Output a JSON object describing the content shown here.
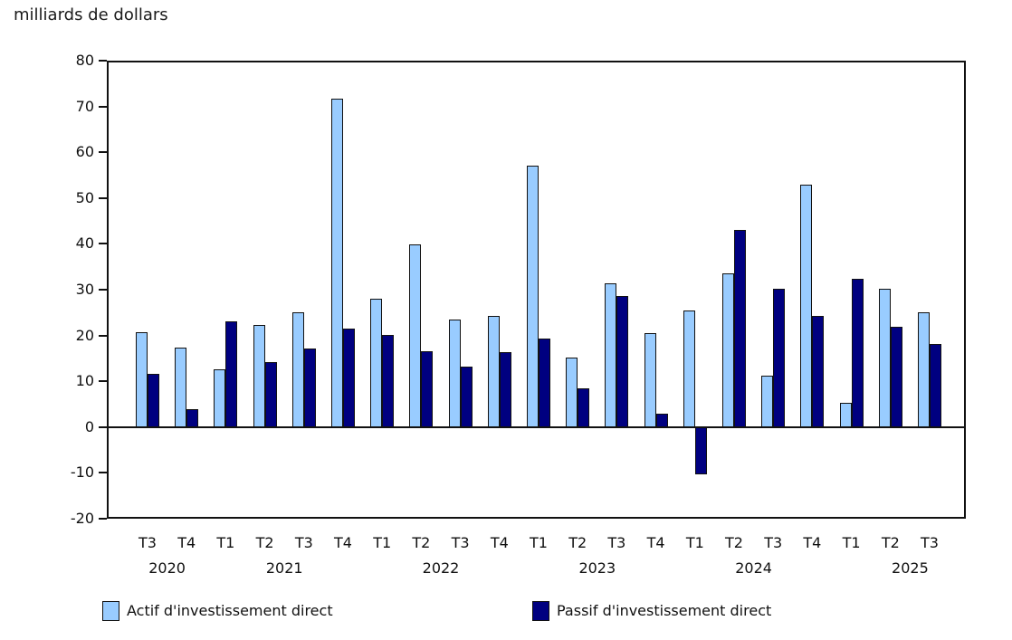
{
  "chart_data": {
    "type": "bar",
    "title": "milliards de dollars",
    "ylim": [
      -20,
      80
    ],
    "ytick_step": 10,
    "ytick_labels": [
      "80",
      "70",
      "60",
      "50",
      "40",
      "30",
      "20",
      "10",
      "0",
      "-10",
      "-20"
    ],
    "grid": false,
    "legend_position": "bottom",
    "categories": [
      {
        "q": "T3",
        "year": "2020"
      },
      {
        "q": "T4",
        "year": "2020"
      },
      {
        "q": "T1",
        "year": "2021"
      },
      {
        "q": "T2",
        "year": "2021"
      },
      {
        "q": "T3",
        "year": "2021"
      },
      {
        "q": "T4",
        "year": "2021"
      },
      {
        "q": "T1",
        "year": "2022"
      },
      {
        "q": "T2",
        "year": "2022"
      },
      {
        "q": "T3",
        "year": "2022"
      },
      {
        "q": "T4",
        "year": "2022"
      },
      {
        "q": "T1",
        "year": "2023"
      },
      {
        "q": "T2",
        "year": "2023"
      },
      {
        "q": "T3",
        "year": "2023"
      },
      {
        "q": "T4",
        "year": "2023"
      },
      {
        "q": "T1",
        "year": "2024"
      },
      {
        "q": "T2",
        "year": "2024"
      },
      {
        "q": "T3",
        "year": "2024"
      },
      {
        "q": "T4",
        "year": "2024"
      },
      {
        "q": "T1",
        "year": "2025"
      },
      {
        "q": "T2",
        "year": "2025"
      },
      {
        "q": "T3",
        "year": "2025"
      }
    ],
    "series": [
      {
        "name": "Actif d'investissement direct",
        "color": "#99CCFF",
        "values": [
          20.8,
          17.4,
          12.6,
          22.3,
          25.0,
          71.7,
          28.1,
          39.8,
          23.5,
          24.2,
          57.0,
          15.2,
          31.3,
          20.5,
          25.5,
          33.5,
          11.2,
          53.0,
          5.3,
          30.1,
          25.1
        ]
      },
      {
        "name": "Passif d'investissement direct",
        "color": "#000080",
        "values": [
          11.7,
          4.0,
          23.1,
          14.1,
          17.2,
          21.5,
          20.1,
          16.6,
          13.2,
          16.3,
          19.4,
          8.4,
          28.7,
          2.9,
          -10.4,
          43.0,
          30.1,
          24.3,
          32.4,
          21.9,
          18.2
        ]
      }
    ],
    "axis_color": "#111111"
  }
}
